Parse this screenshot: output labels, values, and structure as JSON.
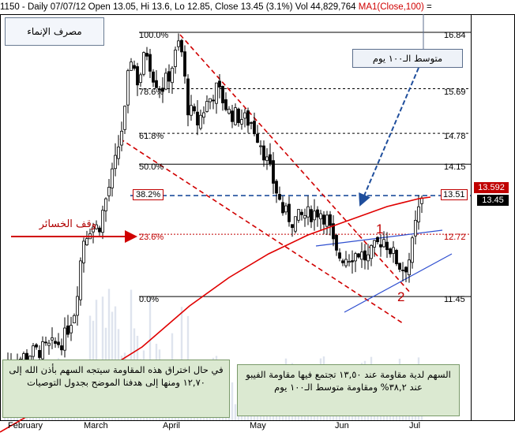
{
  "header": {
    "text": "1150 - Daily 07/07/12 Open 13.05, Hi 13.6, Lo 12.85, Close 13.45 (3.1%) Vol 44,829,764",
    "ma_label": "MA1(Close,100)",
    "ma_suffix": " ="
  },
  "chart_data": {
    "type": "candlestick",
    "symbol": "1150",
    "title_box": "مصرف الإنماء",
    "ma_callout": "متوسط الـ١٠٠ يوم",
    "stop_loss_label": "وقف الخسائر",
    "wave_labels": [
      "1",
      "2"
    ],
    "note_left": "في حال اختراق هذه المقاومة سيتجه السهم بأذن الله إلى ١٢,٧٠ ومنها إلى هدفنا الموضح بجدول التوصيات",
    "note_right": "السهم لدية مقاومة عند ١٣,٥٠ تجتمع فيها مقاومة الفيبو عند ٣٨,٢% ومقاومة متوسط الـ١٠٠ يوم",
    "fib_levels": [
      {
        "label": "100.0%",
        "price": "16.84",
        "y": 16.84
      },
      {
        "label": "78.6%",
        "price": "15.69",
        "y": 15.69
      },
      {
        "label": "61.8%",
        "price": "14.78",
        "y": 14.78
      },
      {
        "label": "50.0%",
        "price": "14.15",
        "y": 14.15
      },
      {
        "label": "38.2%",
        "price": "13.51",
        "y": 13.51
      },
      {
        "label": "23.6%",
        "price": "12.72",
        "y": 12.72
      },
      {
        "label": "0.0%",
        "price": "11.45",
        "y": 11.45
      }
    ],
    "price_tags": [
      {
        "text": "13.592",
        "color": "#c00000"
      },
      {
        "text": "13.45",
        "color": "#000000"
      }
    ],
    "x_labels": [
      "February",
      "March",
      "April",
      "May",
      "Jun",
      "Jul"
    ],
    "colors": {
      "up": "#ffffff",
      "down": "#000000",
      "ma": "#e00000",
      "trend": "#d00000",
      "channel": "#3050d0"
    },
    "ylim": [
      9.6,
      17.6
    ]
  }
}
